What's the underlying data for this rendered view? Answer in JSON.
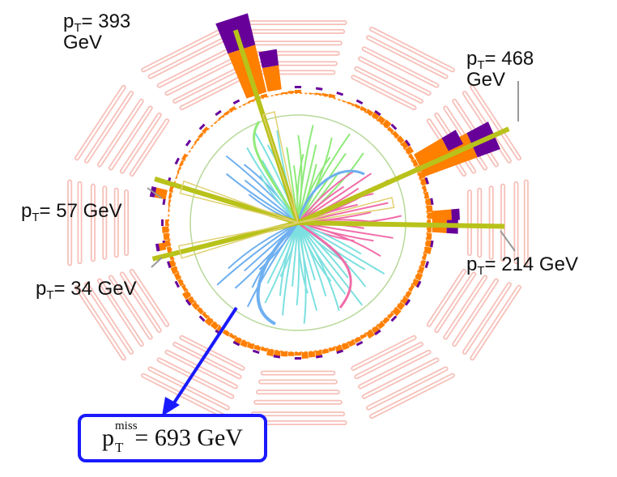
{
  "labels": {
    "jet1": {
      "p": "p",
      "sub": "T",
      "text": "= 393",
      "line2": "GeV"
    },
    "jet2": {
      "p": "p",
      "sub": "T",
      "text": "= 468",
      "line2": "GeV"
    },
    "jet3": {
      "p": "p",
      "sub": "T",
      "text": "= 57 GeV"
    },
    "jet4": {
      "p": "p",
      "sub": "T",
      "text": "= 34 GeV"
    },
    "jet5": {
      "p": "p",
      "sub": "T",
      "text": "= 214 GeV"
    }
  },
  "missing": {
    "p": "p",
    "sup": "miss",
    "sub": "T",
    "text": "= 693 GeV"
  },
  "colors": {
    "muon_chambers": "#f5b5ac",
    "ecal": "#ff7f00",
    "hcal": "#660099",
    "jet_axis": "#b8c21a",
    "met_arrow": "#1a1aff",
    "tracks": [
      "#8fea7a",
      "#f06ca8",
      "#6fb0f0",
      "#7de0e0",
      "#f0a0a0"
    ]
  }
}
